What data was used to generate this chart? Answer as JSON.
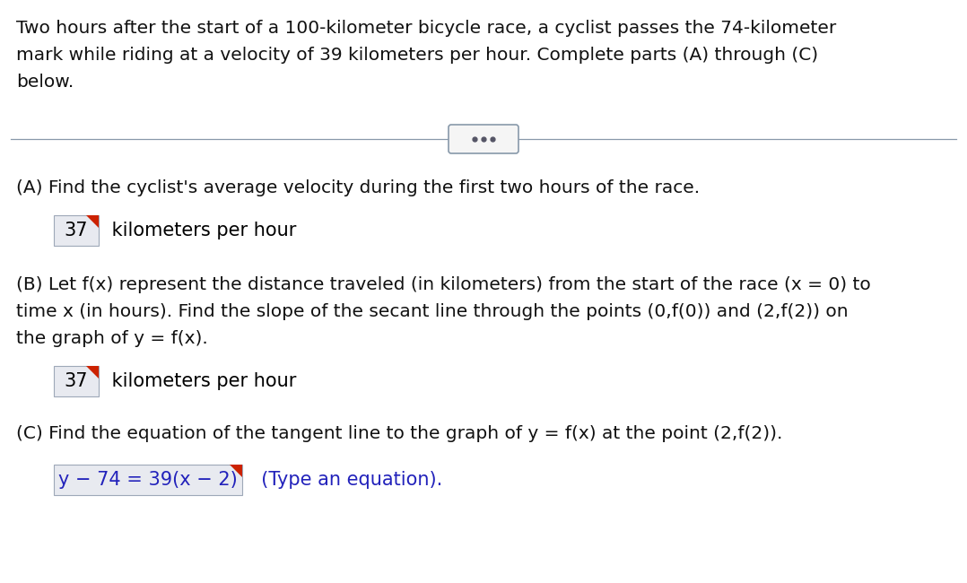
{
  "background_color": "#ffffff",
  "intro_line1": "Two hours after the start of a 100-kilometer bicycle race, a cyclist passes the 74-kilometer",
  "intro_line2": "mark while riding at a velocity of 39 kilometers per hour. Complete parts (A) through (C)",
  "intro_line3": "below.",
  "dots_text": "• • •",
  "part_a_question": "(A) Find the cyclist's average velocity during the first two hours of the race.",
  "part_a_answer": "37",
  "part_a_suffix": " kilometers per hour",
  "part_b_question_line1": "(B) Let f(x) represent the distance traveled (in kilometers) from the start of the race (x = 0) to",
  "part_b_question_line2": "time x (in hours). Find the slope of the secant line through the points (0,f(0)) and (2,f(2)) on",
  "part_b_question_line3": "the graph of y = f(x).",
  "part_b_answer": "37",
  "part_b_suffix": " kilometers per hour",
  "part_c_question": "(C) Find the equation of the tangent line to the graph of y = f(x) at the point (2,f(2)).",
  "part_c_answer": "y − 74 = 39(x − 2)",
  "part_c_suffix": "  (Type an equation).",
  "answer_box_color": "#e8eaf0",
  "answer_box_border": "#9ea8b8",
  "answer_text_color": "#000000",
  "suffix_text_color": "#000000",
  "c_answer_text_color": "#2222bb",
  "c_suffix_text_color": "#2222bb",
  "red_corner_color": "#cc2200",
  "divider_color": "#8899aa",
  "btn_face": "#f5f5f5",
  "btn_edge": "#8899aa",
  "dots_color": "#555566",
  "main_font_size": 14.5,
  "answer_font_size": 15.0,
  "intro_font_size": 14.5
}
